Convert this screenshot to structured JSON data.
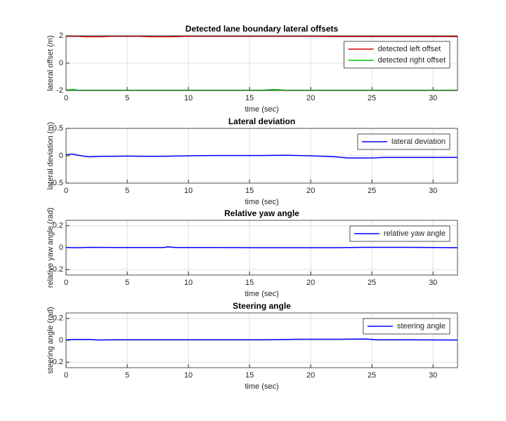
{
  "chart_data": [
    {
      "type": "line",
      "title": "Detected lane boundary lateral offsets",
      "xlabel": "time (sec)",
      "ylabel": "lateral offset (m)",
      "x": [
        0,
        0.5,
        1,
        1.5,
        3,
        3.5,
        6,
        7,
        8.5,
        10,
        12,
        14,
        16,
        17,
        18,
        20,
        22,
        22.8,
        25,
        28,
        30,
        32
      ],
      "series": [
        {
          "name": "detected left offset",
          "color": "#d40000",
          "values": [
            1.96,
            1.96,
            1.96,
            1.93,
            1.93,
            1.96,
            1.96,
            1.93,
            1.93,
            1.96,
            1.96,
            1.96,
            1.96,
            1.96,
            1.96,
            1.96,
            1.94,
            1.94,
            1.94,
            1.94,
            1.94,
            1.94
          ]
        },
        {
          "name": "detected right offset",
          "color": "#00c000",
          "values": [
            -1.98,
            -1.92,
            -1.98,
            -1.98,
            -1.98,
            -1.98,
            -1.98,
            -1.98,
            -1.98,
            -1.98,
            -1.98,
            -1.98,
            -1.98,
            -1.93,
            -1.98,
            -1.98,
            -1.98,
            -1.98,
            -1.98,
            -1.98,
            -1.98,
            -1.98
          ]
        }
      ],
      "xlim": [
        0,
        32
      ],
      "ylim": [
        -2,
        2
      ],
      "xticks": [
        0,
        5,
        10,
        15,
        20,
        25,
        30
      ],
      "yticks": [
        -2,
        0,
        2
      ],
      "grid": true,
      "legend": "northeast"
    },
    {
      "type": "line",
      "title": "Lateral deviation",
      "xlabel": "time (sec)",
      "ylabel": "lateral deviation (m)",
      "x": [
        0,
        0.5,
        1,
        1.5,
        2,
        3,
        4,
        5,
        6,
        8,
        10,
        12,
        14,
        16,
        18,
        20,
        22,
        23,
        25,
        26,
        28,
        30,
        32
      ],
      "series": [
        {
          "name": "lateral deviation",
          "color": "#0000ff",
          "values": [
            0.02,
            0.03,
            0.01,
            -0.01,
            -0.02,
            -0.01,
            -0.01,
            -0.005,
            -0.01,
            -0.01,
            0,
            0.005,
            0.005,
            0.005,
            0.01,
            0,
            -0.02,
            -0.04,
            -0.04,
            -0.03,
            -0.03,
            -0.03,
            -0.03
          ]
        }
      ],
      "xlim": [
        0,
        32
      ],
      "ylim": [
        -0.5,
        0.5
      ],
      "xticks": [
        0,
        5,
        10,
        15,
        20,
        25,
        30
      ],
      "yticks": [
        -0.5,
        0,
        0.5
      ],
      "grid": true,
      "legend": "northeast"
    },
    {
      "type": "line",
      "title": "Relative yaw angle",
      "xlabel": "time (sec)",
      "ylabel": "relative yaw angle (rad)",
      "x": [
        0,
        1,
        2,
        4,
        6,
        8,
        8.3,
        9,
        12,
        16,
        20,
        22,
        24,
        28,
        32
      ],
      "series": [
        {
          "name": "relative yaw angle",
          "color": "#0000ff",
          "values": [
            0.002,
            0,
            0.003,
            0.002,
            0.002,
            0.002,
            0.008,
            0.002,
            0.002,
            0,
            0,
            0,
            0.003,
            0.003,
            0
          ]
        }
      ],
      "xlim": [
        0,
        32
      ],
      "ylim": [
        -0.25,
        0.25
      ],
      "xticks": [
        0,
        5,
        10,
        15,
        20,
        25,
        30
      ],
      "yticks": [
        -0.2,
        0,
        0.2
      ],
      "grid": true,
      "legend": "northeast"
    },
    {
      "type": "line",
      "title": "Steering angle",
      "xlabel": "time (sec)",
      "ylabel": "steering angle (rad)",
      "x": [
        0,
        0.5,
        2,
        2.5,
        4,
        8,
        12,
        16,
        19,
        22,
        24.5,
        25.5,
        28,
        32
      ],
      "series": [
        {
          "name": "steering angle",
          "color": "#0000ff",
          "values": [
            0.003,
            0.008,
            0.008,
            0.003,
            0.005,
            0.005,
            0.005,
            0.005,
            0.01,
            0.01,
            0.012,
            0.005,
            0.005,
            0.003
          ]
        }
      ],
      "xlim": [
        0,
        32
      ],
      "ylim": [
        -0.25,
        0.25
      ],
      "xticks": [
        0,
        5,
        10,
        15,
        20,
        25,
        30
      ],
      "yticks": [
        -0.2,
        0,
        0.2
      ],
      "grid": true,
      "legend": "northeast"
    }
  ]
}
